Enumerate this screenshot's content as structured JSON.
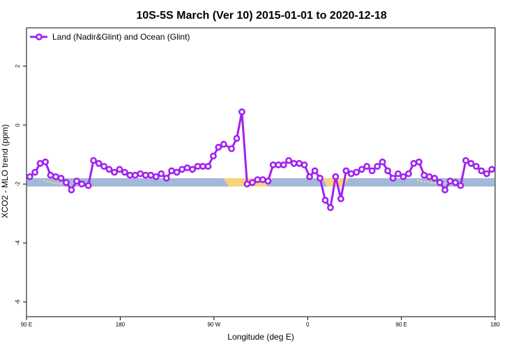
{
  "chart_data": {
    "type": "line",
    "title": "10S-5S March (Ver 10)   2015-01-01 to 2020-12-18",
    "xlabel": "Longitude (deg E)",
    "ylabel": "XCO2 - MLO trend (ppm)",
    "xlim": [
      90,
      450
    ],
    "ylim": [
      -6.5,
      3.3
    ],
    "x_ticks": [
      {
        "value": 90,
        "label": "90 E"
      },
      {
        "value": 162,
        "label": "180"
      },
      {
        "value": 234,
        "label": "90 W"
      },
      {
        "value": 306,
        "label": "0"
      },
      {
        "value": 378,
        "label": "90 E"
      },
      {
        "value": 450,
        "label": "180"
      }
    ],
    "y_ticks": [
      {
        "value": 2,
        "label": "2"
      },
      {
        "value": 0,
        "label": "0"
      },
      {
        "value": -2,
        "label": "-2"
      },
      {
        "value": -4,
        "label": "-4"
      },
      {
        "value": -6,
        "label": "-6"
      }
    ],
    "legend": {
      "position": "top-left"
    },
    "series": [
      {
        "name": "Land (Nadir&Glint) and Ocean (Glint)",
        "color": "#a020f0",
        "x": [
          92.5,
          96.5,
          100.5,
          104.5,
          108.5,
          112.5,
          116.5,
          120.5,
          124.5,
          128.5,
          132.5,
          137.5,
          141.5,
          145.5,
          149.5,
          153.5,
          157.5,
          161.5,
          165.5,
          169.5,
          173.5,
          177.5,
          181.5,
          185.5,
          189.5,
          193.5,
          197.5,
          201.5,
          205.5,
          209.5,
          213.5,
          217.5,
          221.5,
          225.5,
          229.5,
          233.5,
          237.5,
          241.5,
          247.5,
          251.5,
          255.5,
          259.5,
          263.5,
          267.5,
          271.5,
          275.5,
          279.5,
          283.5,
          287.5,
          291.5,
          295.5,
          299.5,
          303.5,
          307.5,
          311.5,
          315.5,
          319.5,
          323.5,
          327.5,
          331.5,
          335.5,
          339.5,
          343.5,
          347.5,
          351.5,
          355.5,
          359.5,
          363.5,
          367.5,
          371.5,
          375.5,
          379.5,
          383.5,
          387.5,
          391.5,
          395.5,
          399.5,
          403.5,
          407.5,
          411.5,
          415.5,
          419.5,
          423.5,
          427.5,
          431.5,
          435.5,
          439.5,
          443.5,
          447.5
        ],
        "y": [
          -1.75,
          -1.6,
          -1.3,
          -1.25,
          -1.7,
          -1.75,
          -1.8,
          -1.95,
          -2.2,
          -1.9,
          -2.0,
          -2.05,
          -1.2,
          -1.3,
          -1.4,
          -1.5,
          -1.6,
          -1.5,
          -1.6,
          -1.7,
          -1.7,
          -1.65,
          -1.7,
          -1.7,
          -1.75,
          -1.65,
          -1.8,
          -1.55,
          -1.6,
          -1.5,
          -1.45,
          -1.5,
          -1.4,
          -1.4,
          -1.4,
          -1.05,
          -0.75,
          -0.65,
          -0.8,
          -0.45,
          0.45,
          -2.0,
          -1.95,
          -1.85,
          -1.85,
          -1.9,
          -1.35,
          -1.35,
          -1.35,
          -1.2,
          -1.3,
          -1.3,
          -1.35,
          -1.75,
          -1.55,
          -1.8,
          -2.55,
          -2.8,
          -1.75,
          -2.5,
          -1.55,
          -1.65,
          -1.6,
          -1.5,
          -1.4,
          -1.55,
          -1.4,
          -1.25,
          -1.55,
          -1.8,
          -1.65,
          -1.75,
          -1.65,
          -1.3,
          -1.25,
          -1.7,
          -1.75,
          -1.8,
          -1.95,
          -2.2,
          -1.9,
          -1.95,
          -2.05,
          -1.2,
          -1.3,
          -1.4,
          -1.55,
          -1.65,
          -1.5
        ]
      }
    ]
  }
}
